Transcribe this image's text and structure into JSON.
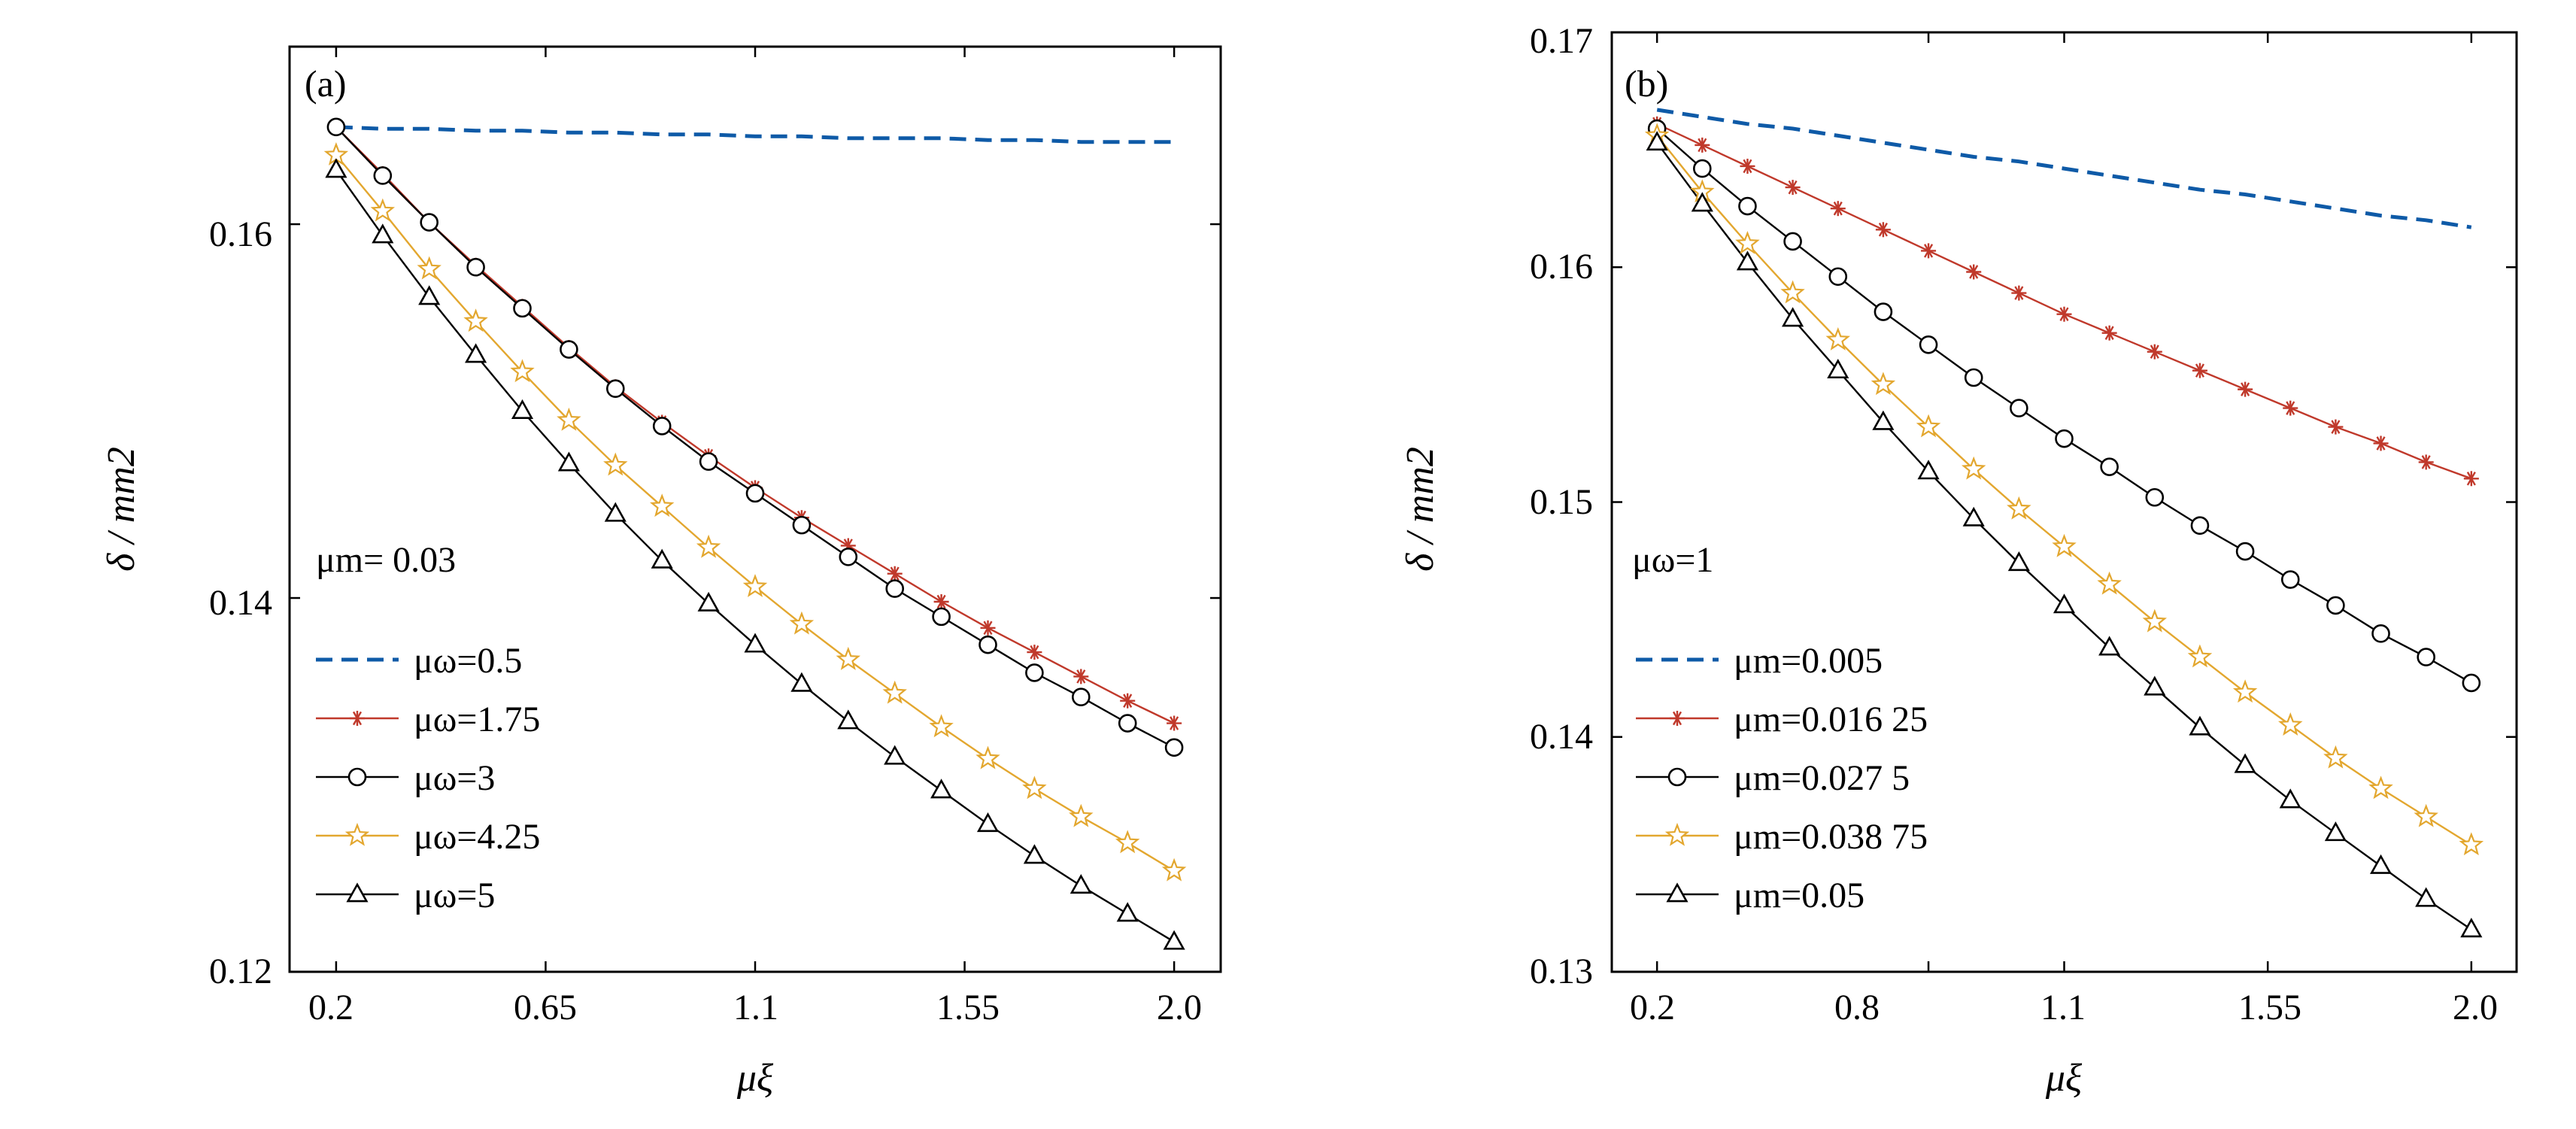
{
  "chart_data": [
    {
      "type": "line",
      "panel_label": "(a)",
      "title": "",
      "xlabel": "μξ",
      "ylabel": "δ / mm2",
      "xlim": [
        0.1,
        2.1
      ],
      "ylim": [
        0.12,
        0.1695
      ],
      "xticks": [
        0.2,
        0.65,
        1.1,
        1.55,
        2.0
      ],
      "xtick_labels": [
        "0.2",
        "0.65",
        "1.1",
        "1.55",
        "2.0"
      ],
      "yticks": [
        0.12,
        0.14,
        0.16
      ],
      "ytick_labels": [
        "0.12",
        "0.14",
        "0.16"
      ],
      "grid": false,
      "legend_placement": "lower-left",
      "legend_header": "μm= 0.03",
      "x": [
        0.2,
        0.3,
        0.4,
        0.5,
        0.6,
        0.7,
        0.8,
        0.9,
        1.0,
        1.1,
        1.2,
        1.3,
        1.4,
        1.5,
        1.6,
        1.7,
        1.8,
        1.9,
        2.0
      ],
      "series": [
        {
          "name": "μω=0.5",
          "color": "#0e5aa7",
          "marker": "none",
          "dashed": true,
          "values": [
            0.1652,
            0.1651,
            0.1651,
            0.165,
            0.165,
            0.1649,
            0.1649,
            0.1648,
            0.1648,
            0.1647,
            0.1647,
            0.1646,
            0.1646,
            0.1646,
            0.1645,
            0.1645,
            0.1644,
            0.1644,
            0.1644
          ]
        },
        {
          "name": "μω=1.75",
          "color": "#c0392b",
          "marker": "asterisk",
          "dashed": false,
          "values": [
            0.1652,
            0.1627,
            0.1601,
            0.1578,
            0.1556,
            0.1534,
            0.1513,
            0.1494,
            0.1476,
            0.1459,
            0.1443,
            0.1428,
            0.1413,
            0.1398,
            0.1384,
            0.1371,
            0.1358,
            0.1345,
            0.1333
          ]
        },
        {
          "name": "μω=3",
          "color": "#000000",
          "marker": "circle",
          "dashed": false,
          "values": [
            0.1652,
            0.1626,
            0.1601,
            0.1577,
            0.1555,
            0.1533,
            0.1512,
            0.1492,
            0.1473,
            0.1456,
            0.1439,
            0.1422,
            0.1405,
            0.139,
            0.1375,
            0.136,
            0.1347,
            0.1333,
            0.132
          ]
        },
        {
          "name": "μω=4.25",
          "color": "#e3a72f",
          "marker": "star",
          "dashed": false,
          "values": [
            0.1637,
            0.1607,
            0.1576,
            0.1548,
            0.1521,
            0.1495,
            0.1471,
            0.1449,
            0.1427,
            0.1406,
            0.1386,
            0.1367,
            0.1349,
            0.1331,
            0.1314,
            0.1298,
            0.1283,
            0.1269,
            0.1254
          ]
        },
        {
          "name": "μω=5",
          "color": "#000000",
          "marker": "triangle",
          "dashed": false,
          "values": [
            0.1629,
            0.1594,
            0.1561,
            0.153,
            0.15,
            0.1472,
            0.1445,
            0.142,
            0.1397,
            0.1375,
            0.1354,
            0.1334,
            0.1315,
            0.1297,
            0.1279,
            0.1262,
            0.1246,
            0.1231,
            0.1216
          ]
        }
      ]
    },
    {
      "type": "line",
      "panel_label": "(b)",
      "title": "",
      "xlabel": "μξ",
      "ylabel": "δ / mm2",
      "xlim": [
        0.1,
        2.1
      ],
      "ylim": [
        0.13,
        0.17
      ],
      "xticks": [
        0.2,
        0.8,
        1.1,
        1.55,
        2.0
      ],
      "xtick_labels": [
        "0.2",
        "0.8",
        "1.1",
        "1.55",
        "2.0"
      ],
      "yticks": [
        0.13,
        0.14,
        0.15,
        0.16,
        0.17
      ],
      "ytick_labels": [
        "0.13",
        "0.14",
        "0.15",
        "0.16",
        "0.17"
      ],
      "grid": false,
      "legend_placement": "lower-left",
      "legend_header": "μω=1",
      "x": [
        0.2,
        0.3,
        0.4,
        0.5,
        0.6,
        0.7,
        0.8,
        0.9,
        1.0,
        1.1,
        1.2,
        1.3,
        1.4,
        1.5,
        1.6,
        1.7,
        1.8,
        1.9,
        2.0
      ],
      "series": [
        {
          "name": "μm=0.005",
          "color": "#0e5aa7",
          "marker": "none",
          "dashed": true,
          "values": [
            0.1667,
            0.1664,
            0.1661,
            0.1659,
            0.1656,
            0.1653,
            0.165,
            0.1647,
            0.1645,
            0.1642,
            0.1639,
            0.1636,
            0.1633,
            0.1631,
            0.1628,
            0.1625,
            0.1622,
            0.162,
            0.1617
          ]
        },
        {
          "name": "μm=0.016 25",
          "color": "#c0392b",
          "marker": "asterisk",
          "dashed": false,
          "values": [
            0.1661,
            0.1652,
            0.1643,
            0.1634,
            0.1625,
            0.1616,
            0.1607,
            0.1598,
            0.1589,
            0.158,
            0.1572,
            0.1564,
            0.1556,
            0.1548,
            0.154,
            0.1532,
            0.1525,
            0.1517,
            0.151
          ]
        },
        {
          "name": "μm=0.027 5",
          "color": "#000000",
          "marker": "circle",
          "dashed": false,
          "values": [
            0.1659,
            0.1642,
            0.1626,
            0.1611,
            0.1596,
            0.1581,
            0.1567,
            0.1553,
            0.154,
            0.1527,
            0.1515,
            0.1502,
            0.149,
            0.1479,
            0.1467,
            0.1456,
            0.1444,
            0.1434,
            0.1423
          ]
        },
        {
          "name": "μm=0.038 75",
          "color": "#e3a72f",
          "marker": "star",
          "dashed": false,
          "values": [
            0.1656,
            0.1632,
            0.161,
            0.1589,
            0.1569,
            0.155,
            0.1532,
            0.1514,
            0.1497,
            0.1481,
            0.1465,
            0.1449,
            0.1434,
            0.1419,
            0.1405,
            0.1391,
            0.1378,
            0.1366,
            0.1354
          ]
        },
        {
          "name": "μm=0.05",
          "color": "#000000",
          "marker": "triangle",
          "dashed": false,
          "values": [
            0.1653,
            0.1627,
            0.1602,
            0.1578,
            0.1556,
            0.1534,
            0.1513,
            0.1493,
            0.1474,
            0.1456,
            0.1438,
            0.1421,
            0.1404,
            0.1388,
            0.1373,
            0.1359,
            0.1345,
            0.1331,
            0.1318
          ]
        }
      ]
    }
  ]
}
